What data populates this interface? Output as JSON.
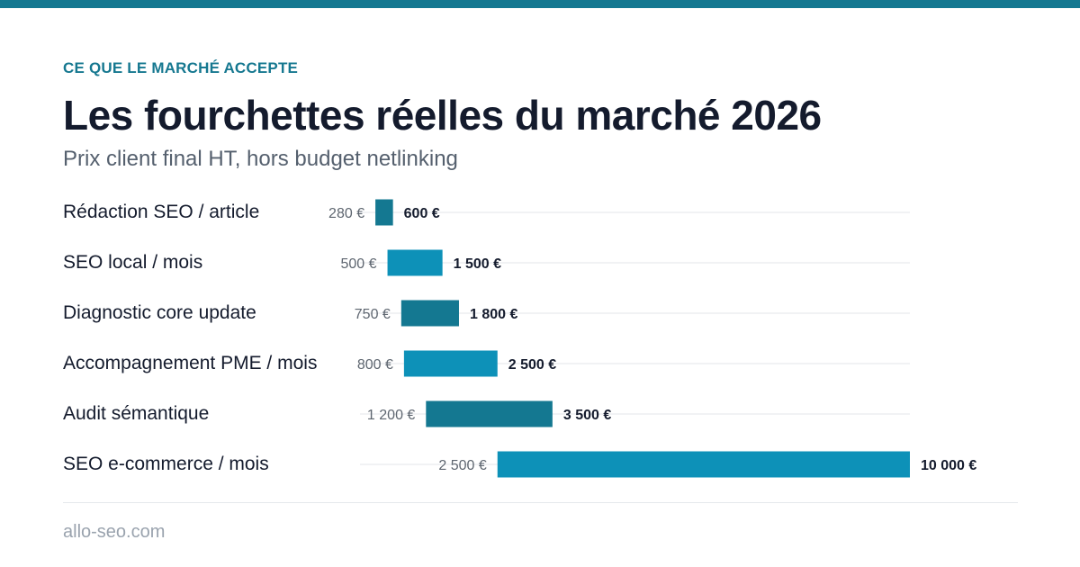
{
  "header": {
    "kicker": "CE QUE LE MARCHÉ ACCEPTE",
    "title": "Les fourchettes réelles du marché 2026",
    "subtitle": "Prix client final HT, hors budget netlinking"
  },
  "footer": {
    "site": "allo-seo.com"
  },
  "colors": {
    "top_bar": "#147891",
    "kicker": "#167890",
    "bar_dark": "#147891",
    "bar_light": "#0d91b8",
    "min_label": "#5e6670",
    "max_label": "#141b2d",
    "track": "#e3e6ea"
  },
  "chart_data": {
    "type": "bar",
    "orientation": "horizontal-range",
    "title": "Les fourchettes réelles du marché 2026",
    "subtitle": "Prix client final HT, hors budget netlinking",
    "xlabel": "",
    "ylabel": "",
    "unit": "€",
    "xlim": [
      0,
      10000
    ],
    "grid": false,
    "legend": "none",
    "categories": [
      "Rédaction SEO / article",
      "SEO local / mois",
      "Diagnostic core update",
      "Accompagnement PME / mois",
      "Audit sémantique",
      "SEO e-commerce / mois"
    ],
    "min_values": [
      280,
      500,
      750,
      800,
      1200,
      2500
    ],
    "max_values": [
      600,
      1500,
      1800,
      2500,
      3500,
      10000
    ],
    "min_labels": [
      "280 €",
      "500 €",
      "750 €",
      "800 €",
      "1 200 €",
      "2 500 €"
    ],
    "max_labels": [
      "600 €",
      "1 500 €",
      "1 800 €",
      "2 500 €",
      "3 500 €",
      "10 000 €"
    ]
  }
}
